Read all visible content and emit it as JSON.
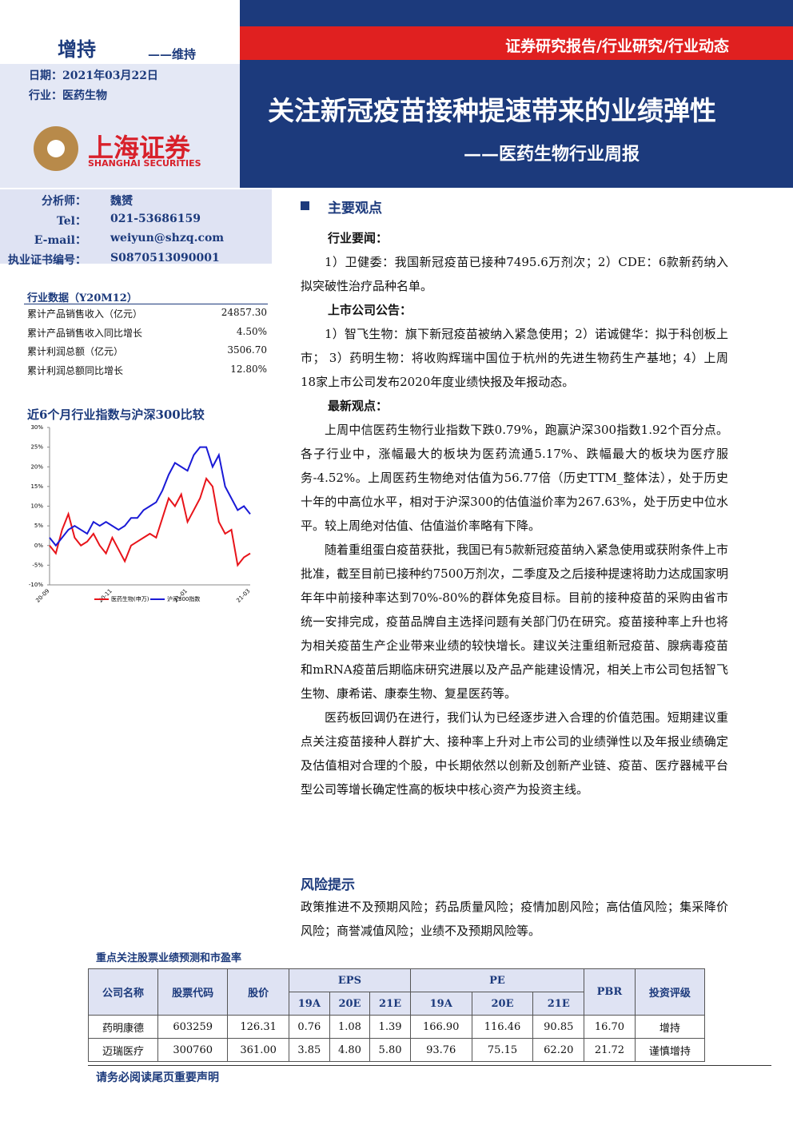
{
  "header": {
    "rating": "增持",
    "rating_prev": "——维持",
    "date": "日期：2021年03月22日",
    "industry": "行业：医药生物",
    "logo_cn": "上海证券",
    "logo_en": "SHANGHAI SECURITIES",
    "report_type": "证券研究报告/行业研究/行业动态",
    "title": "关注新冠疫苗接种提速带来的业绩弹性",
    "subtitle": "——医药生物行业周报"
  },
  "analyst": [
    {
      "label": "分析师：",
      "value": "魏赟"
    },
    {
      "label": "Tel：",
      "value": "021-53686159"
    },
    {
      "label": "E-mail：",
      "value": "weiyun@shzq.com"
    },
    {
      "label": "执业证书编号：",
      "value": "S0870513090001"
    }
  ],
  "industry_data": {
    "title": "行业数据（Y20M12）",
    "rows": [
      [
        "累计产品销售收入（亿元）",
        "24857.30"
      ],
      [
        "累计产品销售收入同比增长",
        "4.50%"
      ],
      [
        "累计利润总额（亿元）",
        "3506.70"
      ],
      [
        "累计利润总额同比增长",
        "12.80%"
      ]
    ]
  },
  "chart_data": {
    "type": "line",
    "title": "近6个月行业指数与沪深300比较",
    "categories": [
      "20-09",
      null,
      null,
      null,
      null,
      null,
      null,
      null,
      null,
      null,
      "20-11",
      null,
      null,
      null,
      null,
      null,
      null,
      null,
      null,
      null,
      null,
      null,
      "21-01",
      null,
      null,
      null,
      null,
      null,
      null,
      null,
      null,
      null,
      "21-03"
    ],
    "series": [
      {
        "name": "医药生物(申万)",
        "color": "#e8141a",
        "values": [
          0,
          -2,
          4,
          8,
          2,
          0,
          1,
          3,
          0,
          -2,
          2,
          -1,
          -4,
          0,
          1,
          2,
          3,
          2,
          7,
          12,
          10,
          13,
          6,
          9,
          12,
          17,
          15,
          6,
          3,
          4,
          -5,
          -3,
          -2
        ]
      },
      {
        "name": "沪深300指数",
        "color": "#1a1ad6",
        "values": [
          2,
          0,
          2,
          4,
          5,
          4,
          3,
          6,
          5,
          6,
          5,
          4,
          5,
          7,
          7,
          9,
          10,
          11,
          14,
          18,
          21,
          20,
          19,
          23,
          25,
          25,
          20,
          23,
          15,
          12,
          9,
          10,
          8
        ]
      }
    ],
    "ylim": [
      -10,
      30
    ],
    "yticks": [
      {
        "value": 30,
        "label": "30%"
      },
      {
        "value": 25,
        "label": "25%"
      },
      {
        "value": 20,
        "label": "20%"
      },
      {
        "value": 15,
        "label": "15%"
      },
      {
        "value": 10,
        "label": "10%"
      },
      {
        "value": 5,
        "label": "5%"
      },
      {
        "value": 0,
        "label": "0%"
      },
      {
        "value": -5,
        "label": "-5%"
      },
      {
        "value": -10,
        "label": "-10%"
      }
    ]
  },
  "main": {
    "heading": "主要观点",
    "sections": [
      {
        "heading": "行业要闻：",
        "paragraphs": [
          "1）卫健委：我国新冠疫苗已接种7495.6万剂次；2）CDE：6款新药纳入拟突破性治疗品种名单。"
        ]
      },
      {
        "heading": "上市公司公告：",
        "paragraphs": [
          "1）智飞生物：旗下新冠疫苗被纳入紧急使用；2）诺诚健华：拟于科创板上市； 3）药明生物：将收购辉瑞中国位于杭州的先进生物药生产基地；4）上周18家上市公司发布2020年度业绩快报及年报动态。"
        ]
      },
      {
        "heading": "最新观点：",
        "paragraphs": [
          "上周中信医药生物行业指数下跌0.79%，跑赢沪深300指数1.92个百分点。各子行业中，涨幅最大的板块为医药流通5.17%、跌幅最大的板块为医疗服务-4.52%。上周医药生物绝对估值为56.77倍（历史TTM_整体法），处于历史十年的中高位水平，相对于沪深300的估值溢价率为267.63%，处于历史中位水平。较上周绝对估值、估值溢价率略有下降。",
          "随着重组蛋白疫苗获批，我国已有5款新冠疫苗纳入紧急使用或获附条件上市批准，截至目前已接种约7500万剂次，二季度及之后接种提速将助力达成国家明年年中前接种率达到70%-80%的群体免疫目标。目前的接种疫苗的采购由省市统一安排完成，疫苗品牌自主选择问题有关部门仍在研究。疫苗接种率上升也将为相关疫苗生产企业带来业绩的较快增长。建议关注重组新冠疫苗、腺病毒疫苗和mRNA疫苗后期临床研究进展以及产品产能建设情况，相关上市公司包括智飞生物、康希诺、康泰生物、复星医药等。",
          "医药板回调仍在进行，我们认为已经逐步进入合理的价值范围。短期建议重点关注疫苗接种人群扩大、接种率上升对上市公司的业绩弹性以及年报业绩确定及估值相对合理的个股，中长期依然以创新及创新产业链、疫苗、医疗器械平台型公司等增长确定性高的板块中核心资产为投资主线。"
        ]
      }
    ]
  },
  "risk": {
    "heading": "风险提示",
    "text": "政策推进不及预期风险；药品质量风险；疫情加剧风险；高估值风险；集采降价风险；商誉减值风险；业绩不及预期风险等。"
  },
  "table": {
    "title": "重点关注股票业绩预测和市盈率",
    "header": [
      "公司名称",
      "股票代码",
      "股价",
      "EPS",
      "PE",
      "PBR",
      "投资评级"
    ],
    "subheader": [
      "19A",
      "20E",
      "21E",
      "19A",
      "20E",
      "21E"
    ],
    "rows": [
      [
        "药明康德",
        "603259",
        "126.31",
        "0.76",
        "1.08",
        "1.39",
        "166.90",
        "116.46",
        "90.85",
        "16.70",
        "增持"
      ],
      [
        "迈瑞医疗",
        "300760",
        "361.00",
        "3.85",
        "4.80",
        "5.80",
        "93.76",
        "75.15",
        "62.20",
        "21.72",
        "谨慎增持"
      ]
    ]
  },
  "footer": "请务必阅读尾页重要声明"
}
